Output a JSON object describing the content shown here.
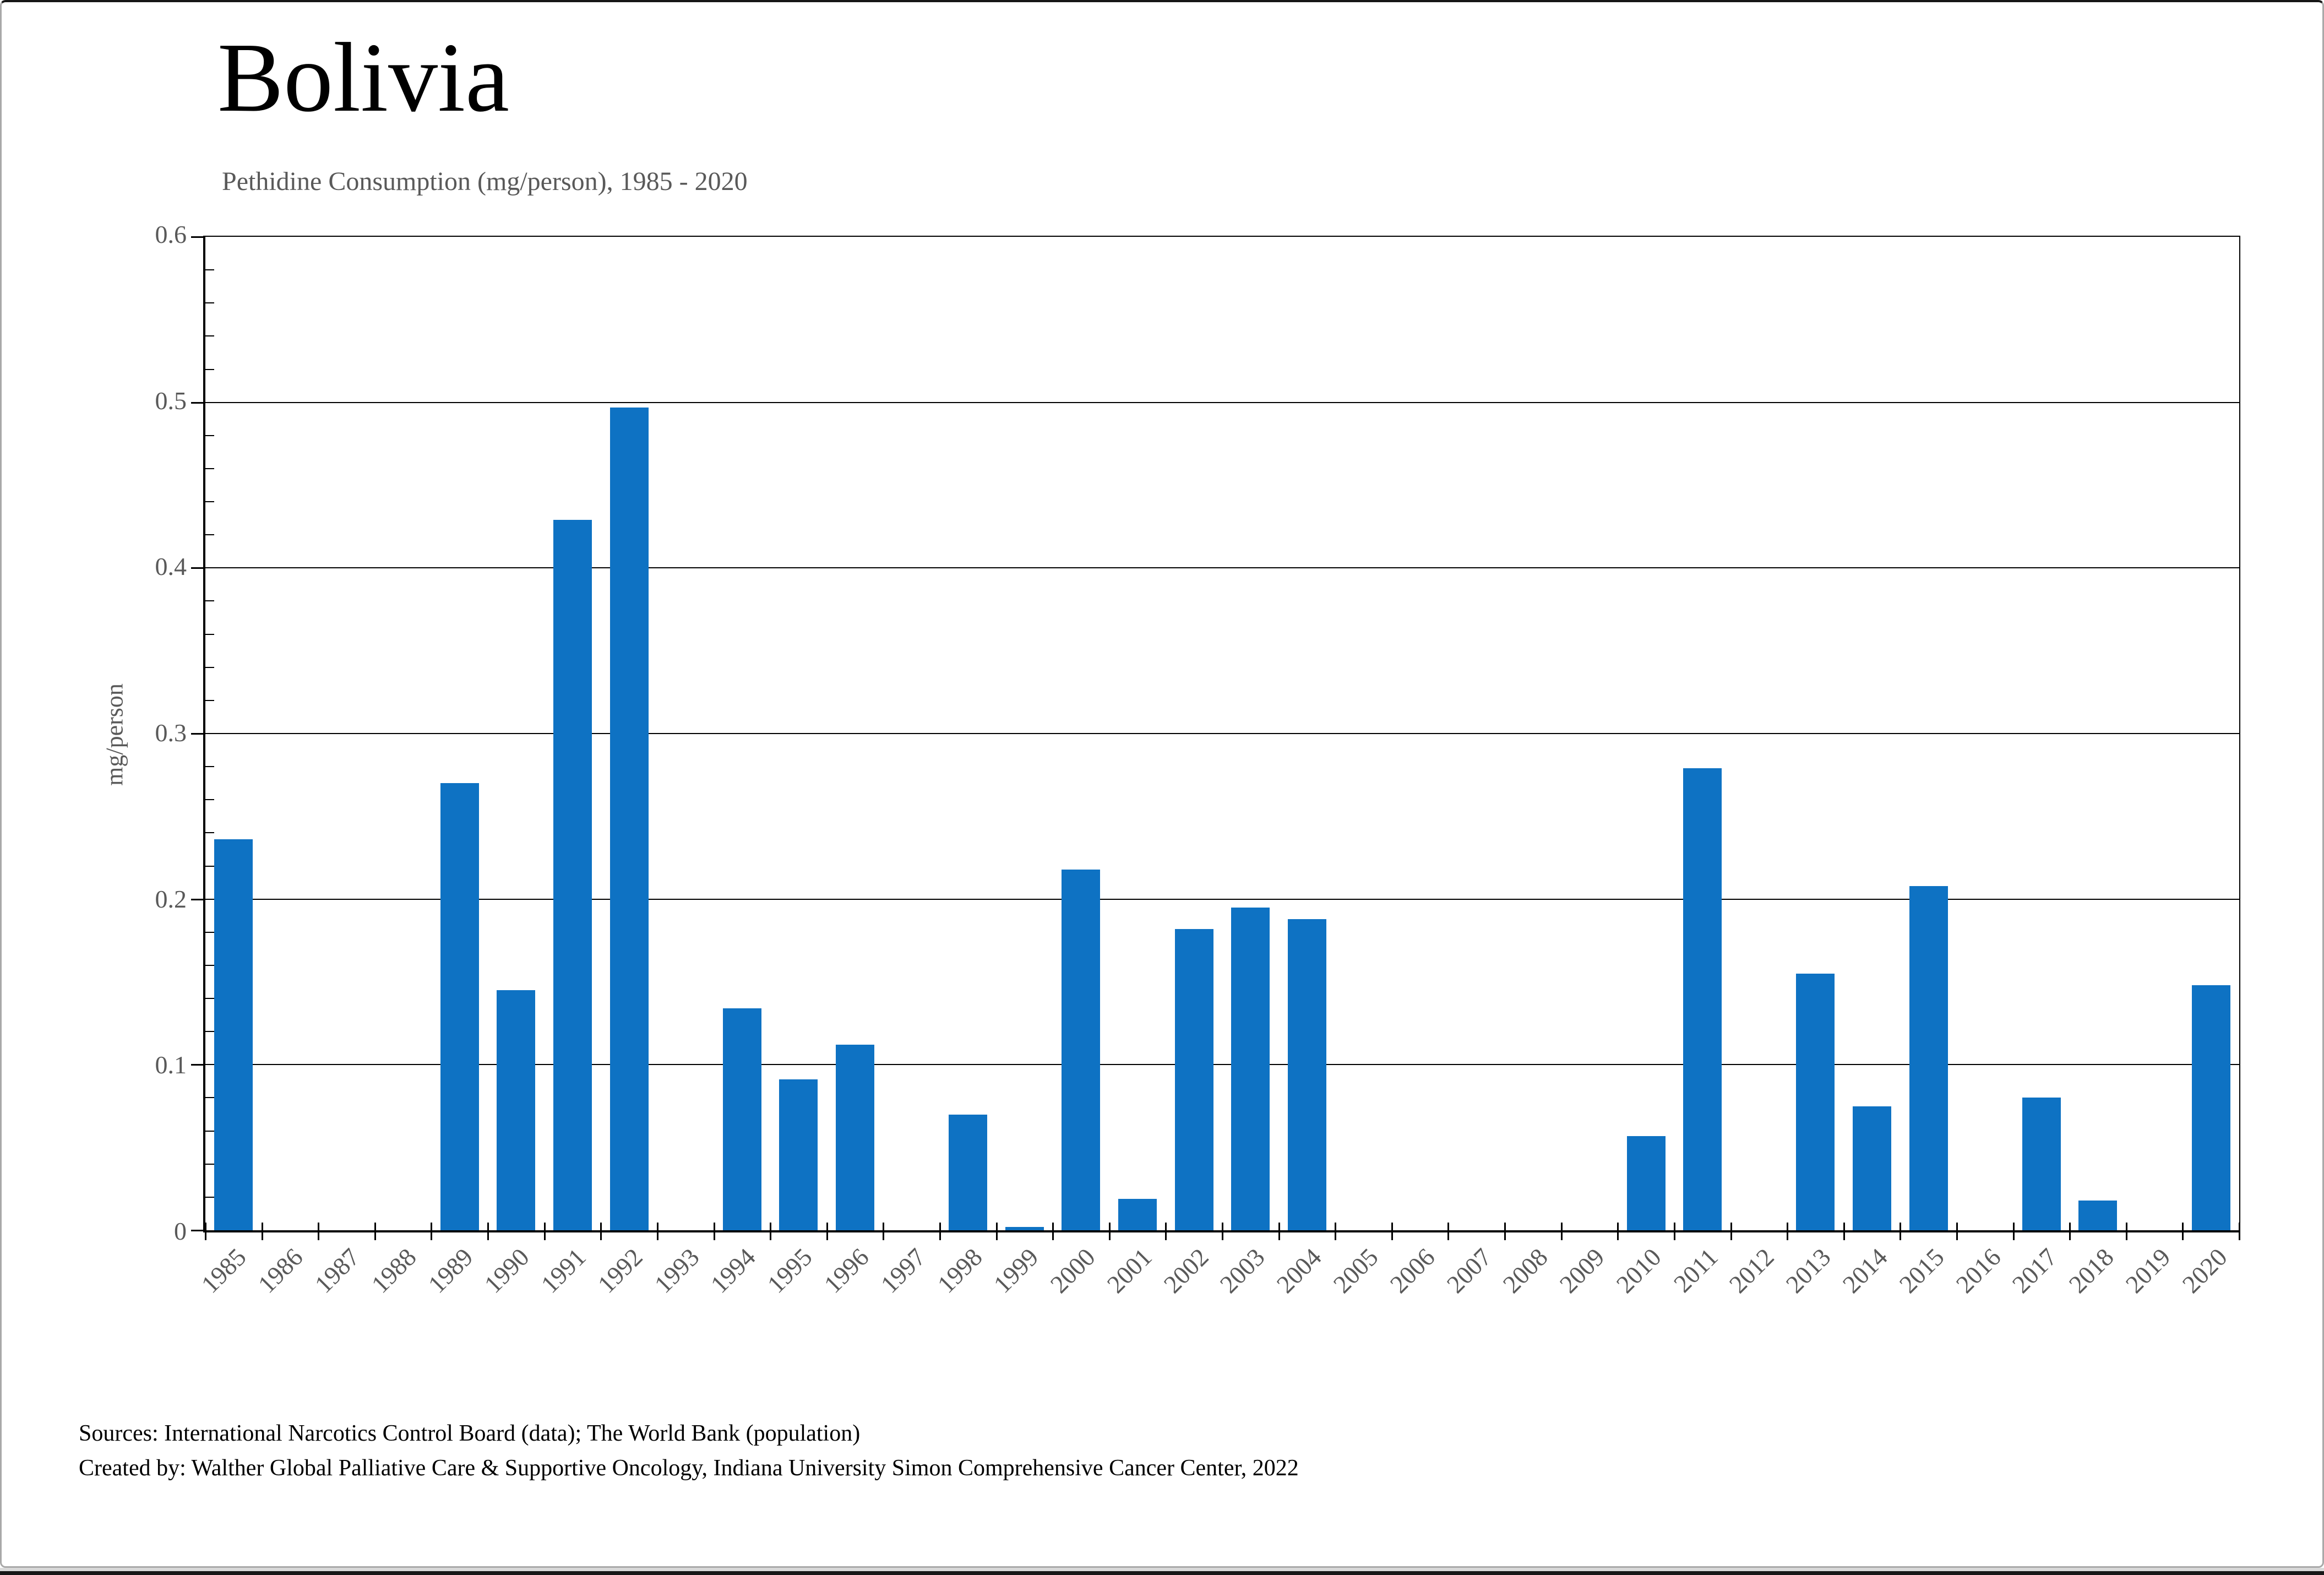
{
  "header": {
    "title": "Bolivia",
    "subtitle": "Pethidine Consumption (mg/person), 1985 - 2020"
  },
  "chart_data": {
    "type": "bar",
    "title": "Bolivia",
    "subtitle": "Pethidine Consumption (mg/person), 1985 - 2020",
    "xlabel": "",
    "ylabel": "mg/person",
    "ylim": [
      0,
      0.6
    ],
    "ytick_step": 0.1,
    "ytick_labels": [
      "0",
      "0.1",
      "0.2",
      "0.3",
      "0.4",
      "0.5",
      "0.6"
    ],
    "y_minor_tick_step": 0.02,
    "grid": true,
    "legend": false,
    "bar_color": "#0e72c3",
    "categories": [
      "1985",
      "1986",
      "1987",
      "1988",
      "1989",
      "1990",
      "1991",
      "1992",
      "1993",
      "1994",
      "1995",
      "1996",
      "1997",
      "1998",
      "1999",
      "2000",
      "2001",
      "2002",
      "2003",
      "2004",
      "2005",
      "2006",
      "2007",
      "2008",
      "2009",
      "2010",
      "2011",
      "2012",
      "2013",
      "2014",
      "2015",
      "2016",
      "2017",
      "2018",
      "2019",
      "2020"
    ],
    "values": [
      0.236,
      0,
      0,
      0,
      0.27,
      0.145,
      0.429,
      0.497,
      0,
      0.134,
      0.091,
      0.112,
      0,
      0.07,
      0.002,
      0.218,
      0.019,
      0.182,
      0.195,
      0.188,
      0,
      0,
      0,
      0,
      0,
      0.057,
      0.279,
      0,
      0.155,
      0.075,
      0.208,
      0,
      0.08,
      0.018,
      0,
      0.148
    ]
  },
  "footer": {
    "line1": "Sources: International Narcotics Control Board (data); The World Bank (population)",
    "line2": "Created by: Walther Global Palliative Care & Supportive Oncology, Indiana University Simon Comprehensive Cancer Center, 2022"
  },
  "colors": {
    "bar": "#0e72c3",
    "muted_text": "#595959",
    "axis": "#000000",
    "card_top_border": "#161616"
  }
}
